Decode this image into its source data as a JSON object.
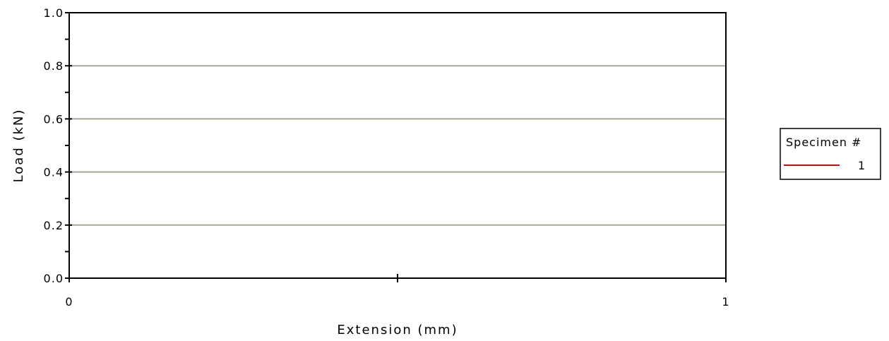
{
  "chart_data": {
    "type": "line",
    "xlabel": "Extension (mm)",
    "ylabel": "Load (kN)",
    "xlim": [
      0,
      1
    ],
    "ylim": [
      0.0,
      1.0
    ],
    "x_ticks": [
      {
        "value": 0,
        "label": "0"
      },
      {
        "value": 0.5,
        "label": ""
      },
      {
        "value": 1,
        "label": "1"
      }
    ],
    "y_ticks": [
      {
        "value": 0.0,
        "label": "0.0"
      },
      {
        "value": 0.2,
        "label": "0.2"
      },
      {
        "value": 0.4,
        "label": "0.4"
      },
      {
        "value": 0.6,
        "label": "0.6"
      },
      {
        "value": 0.8,
        "label": "0.8"
      },
      {
        "value": 1.0,
        "label": "1.0"
      }
    ],
    "y_minor_ticks": [
      0.1,
      0.3,
      0.5,
      0.7,
      0.9
    ],
    "gridlines": [
      0.2,
      0.4,
      0.6,
      0.8
    ],
    "grid_color": "#a8a89a",
    "legend": {
      "title": "Specimen #",
      "placement": "right",
      "entries": [
        {
          "label": "1",
          "color": "#e00000"
        }
      ]
    },
    "series": [
      {
        "name": "1",
        "color": "#e00000",
        "x": [],
        "y": []
      }
    ]
  }
}
